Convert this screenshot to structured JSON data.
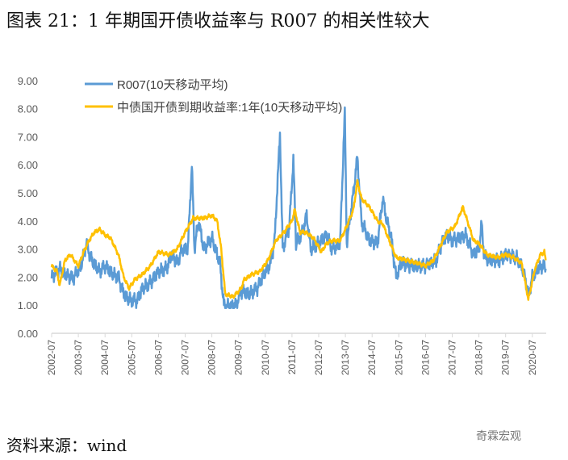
{
  "title": "图表 21：1 年期国开债收益率与 R007 的相关性较大",
  "source": "资料来源：wind",
  "watermark": "奇霖宏观",
  "chart_data": {
    "type": "line",
    "title": "图表 21：1 年期国开债收益率与 R007 的相关性较大",
    "xlabel": "",
    "ylabel": "",
    "ylim": [
      0,
      9
    ],
    "yticks": [
      "0.00",
      "1.00",
      "2.00",
      "3.00",
      "4.00",
      "5.00",
      "6.00",
      "7.00",
      "8.00",
      "9.00"
    ],
    "xticks": [
      "2002-07",
      "2003-07",
      "2004-07",
      "2005-07",
      "2006-07",
      "2007-07",
      "2008-07",
      "2009-07",
      "2010-07",
      "2011-07",
      "2012-07",
      "2013-07",
      "2014-07",
      "2015-07",
      "2016-07",
      "2017-07",
      "2018-07",
      "2019-07",
      "2020-07"
    ],
    "legend_position": "top-left",
    "series": [
      {
        "name": "R007(10天移动平均)",
        "color": "#5B9BD5",
        "x": [
          2002.5,
          2002.8,
          2003.0,
          2003.3,
          2003.6,
          2003.8,
          2004.0,
          2004.3,
          2004.5,
          2004.8,
          2005.0,
          2005.2,
          2005.4,
          2005.7,
          2005.9,
          2006.2,
          2006.5,
          2006.8,
          2007.0,
          2007.2,
          2007.4,
          2007.6,
          2007.75,
          2007.85,
          2008.0,
          2008.2,
          2008.5,
          2008.8,
          2008.95,
          2009.2,
          2009.4,
          2009.6,
          2009.9,
          2010.2,
          2010.5,
          2010.7,
          2010.85,
          2010.95,
          2011.05,
          2011.15,
          2011.4,
          2011.55,
          2011.65,
          2011.9,
          2012.05,
          2012.2,
          2012.5,
          2012.8,
          2013.0,
          2013.3,
          2013.48,
          2013.55,
          2013.8,
          2013.95,
          2014.1,
          2014.4,
          2014.7,
          2014.9,
          2015.05,
          2015.2,
          2015.4,
          2015.6,
          2016.0,
          2016.5,
          2016.9,
          2017.1,
          2017.3,
          2017.5,
          2017.8,
          2018.0,
          2018.3,
          2018.5,
          2018.6,
          2018.7,
          2019.0,
          2019.3,
          2019.5,
          2019.9,
          2020.1,
          2020.3,
          2020.35,
          2020.5,
          2020.7,
          2020.9,
          2021.0
        ],
        "values": [
          2.0,
          2.3,
          2.1,
          1.95,
          2.4,
          3.2,
          2.6,
          2.2,
          2.4,
          2.1,
          2.0,
          1.4,
          1.2,
          1.15,
          1.6,
          1.8,
          2.2,
          2.3,
          2.8,
          2.5,
          3.0,
          3.0,
          6.0,
          3.0,
          4.0,
          3.0,
          3.4,
          2.5,
          1.0,
          0.95,
          1.0,
          1.5,
          1.4,
          1.6,
          2.2,
          2.5,
          3.3,
          5.2,
          7.1,
          3.0,
          3.8,
          6.2,
          3.2,
          3.6,
          4.2,
          3.0,
          3.2,
          3.5,
          3.0,
          3.2,
          7.9,
          3.2,
          5.0,
          6.3,
          4.0,
          3.3,
          3.2,
          4.8,
          4.0,
          3.5,
          2.0,
          2.5,
          2.4,
          2.4,
          2.6,
          3.2,
          3.5,
          3.3,
          3.4,
          3.5,
          2.8,
          3.0,
          3.9,
          2.7,
          2.6,
          2.6,
          2.8,
          2.7,
          2.4,
          1.7,
          1.3,
          2.0,
          2.3,
          2.4,
          2.3
        ]
      },
      {
        "name": "中债国开债到期收益率:1年(10天移动平均)",
        "color": "#FFC000",
        "x": [
          2002.5,
          2002.7,
          2002.8,
          2003.0,
          2003.2,
          2003.5,
          2003.7,
          2003.9,
          2004.1,
          2004.3,
          2004.5,
          2004.7,
          2005.0,
          2005.2,
          2005.4,
          2005.6,
          2005.9,
          2006.2,
          2006.5,
          2006.9,
          2007.2,
          2007.5,
          2007.8,
          2008.2,
          2008.5,
          2008.7,
          2008.85,
          2009.0,
          2009.3,
          2009.6,
          2009.7,
          2010.0,
          2010.3,
          2010.6,
          2010.9,
          2011.2,
          2011.5,
          2011.6,
          2011.8,
          2012.0,
          2012.3,
          2012.6,
          2012.8,
          2013.0,
          2013.3,
          2013.5,
          2013.8,
          2013.95,
          2014.1,
          2014.4,
          2014.7,
          2014.9,
          2015.1,
          2015.4,
          2015.8,
          2016.2,
          2016.5,
          2016.8,
          2017.0,
          2017.3,
          2017.6,
          2017.9,
          2018.1,
          2018.3,
          2018.5,
          2018.8,
          2019.2,
          2019.5,
          2019.8,
          2020.1,
          2020.35,
          2020.6,
          2020.8,
          2020.95,
          2021.0
        ],
        "values": [
          2.4,
          2.2,
          1.7,
          2.6,
          2.8,
          2.4,
          2.9,
          3.3,
          3.6,
          3.7,
          3.5,
          3.4,
          2.8,
          2.0,
          1.6,
          1.9,
          2.1,
          2.4,
          2.9,
          2.8,
          3.0,
          3.6,
          4.1,
          4.1,
          4.2,
          4.0,
          3.0,
          1.4,
          1.3,
          1.6,
          1.9,
          2.1,
          2.2,
          2.6,
          3.3,
          3.6,
          4.0,
          4.4,
          3.6,
          3.6,
          3.4,
          2.9,
          3.2,
          3.3,
          3.3,
          3.7,
          4.4,
          5.4,
          4.8,
          4.5,
          4.0,
          3.9,
          3.4,
          2.7,
          2.6,
          2.5,
          2.4,
          2.6,
          3.0,
          3.6,
          3.8,
          4.5,
          3.9,
          3.3,
          3.2,
          2.8,
          2.7,
          2.8,
          2.7,
          2.5,
          1.2,
          2.3,
          2.8,
          2.9,
          2.6
        ]
      }
    ]
  }
}
